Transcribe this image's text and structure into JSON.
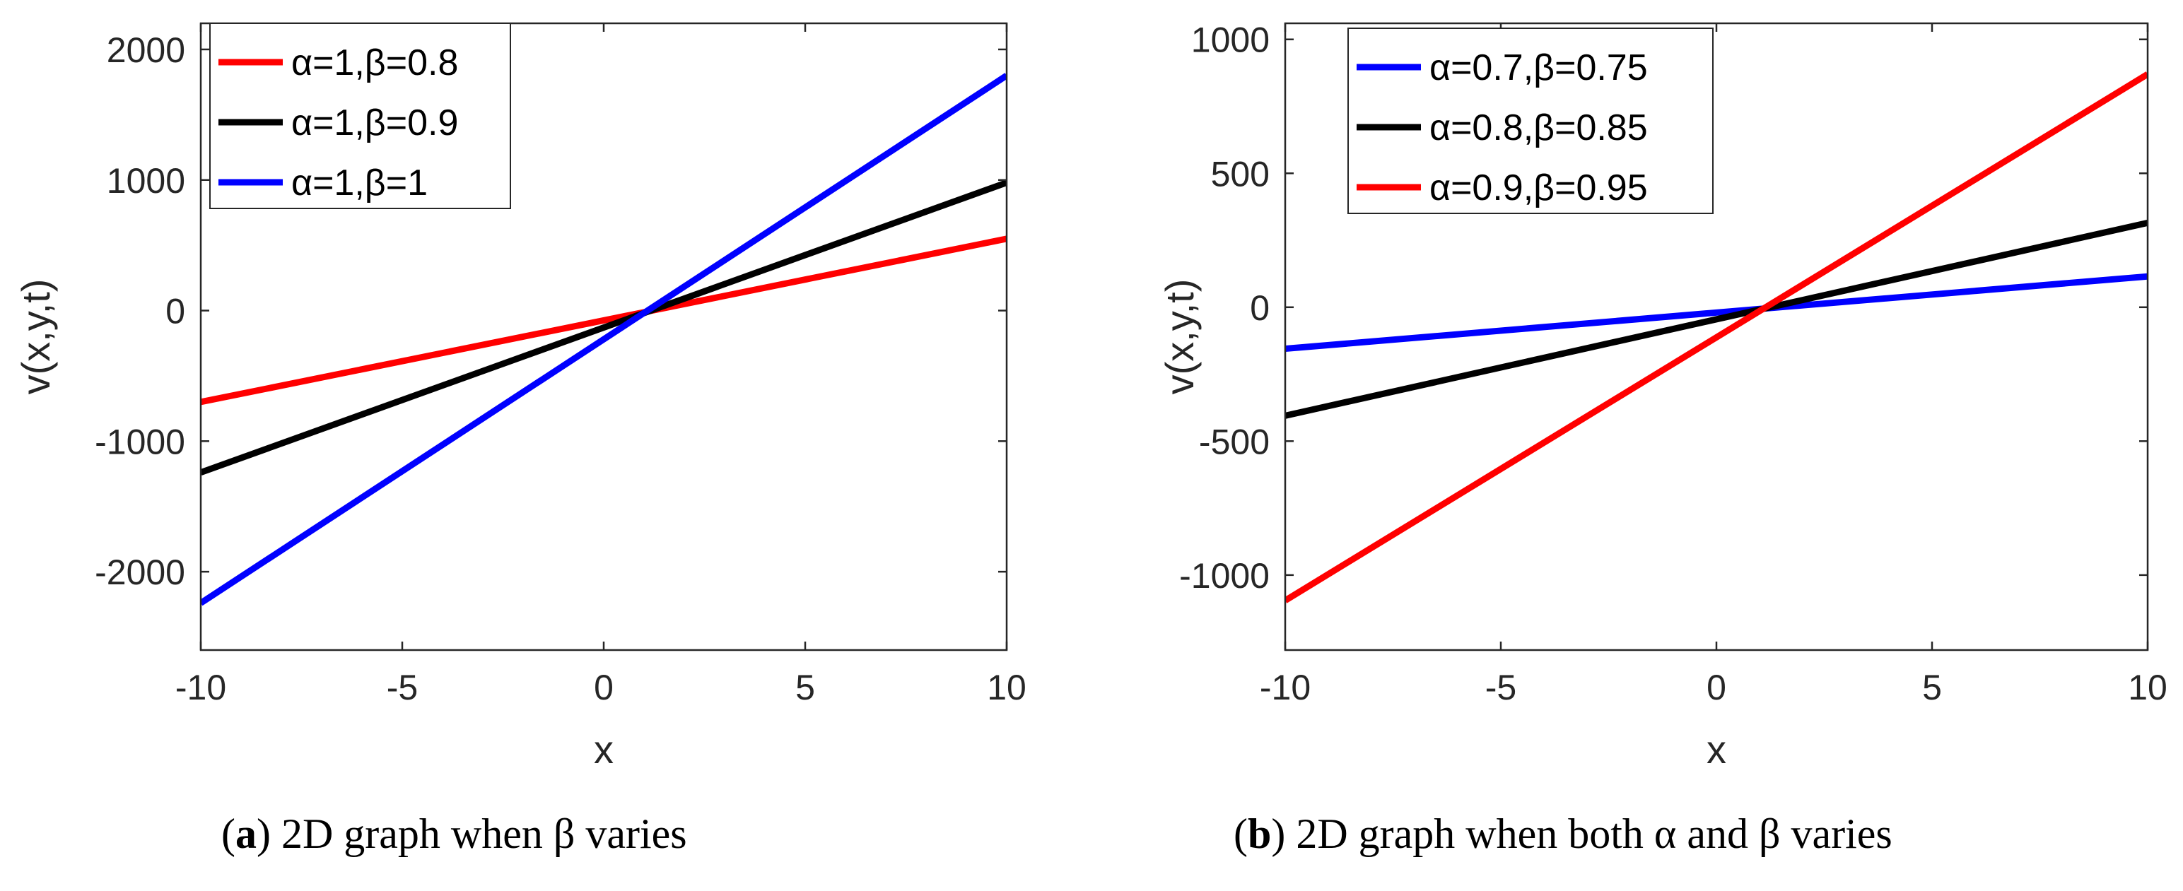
{
  "figure": {
    "panels": [
      {
        "caption_label": "a",
        "caption_text": "2D graph when β varies"
      },
      {
        "caption_label": "b",
        "caption_text": "2D graph when both α and β varies"
      }
    ]
  },
  "colors": {
    "red": "#ff0000",
    "black": "#000000",
    "blue": "#0000ff",
    "axis": "#262626"
  },
  "chart_data": [
    {
      "type": "line",
      "title": "",
      "xlabel": "x",
      "ylabel": "v(x,y,t)",
      "xlim": [
        -10,
        10
      ],
      "ylim": [
        -2600,
        2200
      ],
      "xticks": [
        -10,
        -5,
        0,
        5,
        10
      ],
      "yticks": [
        -2000,
        -1000,
        0,
        1000,
        2000
      ],
      "grid": false,
      "legend_position": "top-left",
      "series": [
        {
          "name": "α=1,β=0.8",
          "color": "#ff0000",
          "x": [
            -10,
            10
          ],
          "y": [
            -700,
            550
          ]
        },
        {
          "name": "α=1,β=0.9",
          "color": "#000000",
          "x": [
            -10,
            10
          ],
          "y": [
            -1240,
            980
          ]
        },
        {
          "name": "α=1,β=1",
          "color": "#0000ff",
          "x": [
            -10,
            10
          ],
          "y": [
            -2240,
            1800
          ]
        }
      ]
    },
    {
      "type": "line",
      "title": "",
      "xlabel": "x",
      "ylabel": "v(x,y,t)",
      "xlim": [
        -10,
        10
      ],
      "ylim": [
        -1280,
        1060
      ],
      "xticks": [
        -10,
        -5,
        0,
        5,
        10
      ],
      "yticks": [
        -1000,
        -500,
        0,
        500,
        1000
      ],
      "grid": false,
      "legend_position": "top-left",
      "series": [
        {
          "name": "α=0.7,β=0.75",
          "color": "#0000ff",
          "x": [
            -10,
            10
          ],
          "y": [
            -155,
            115
          ]
        },
        {
          "name": "α=0.8,β=0.85",
          "color": "#000000",
          "x": [
            -10,
            10
          ],
          "y": [
            -405,
            315
          ]
        },
        {
          "name": "α=0.9,β=0.95",
          "color": "#ff0000",
          "x": [
            -10,
            10
          ],
          "y": [
            -1095,
            870
          ]
        }
      ]
    }
  ]
}
